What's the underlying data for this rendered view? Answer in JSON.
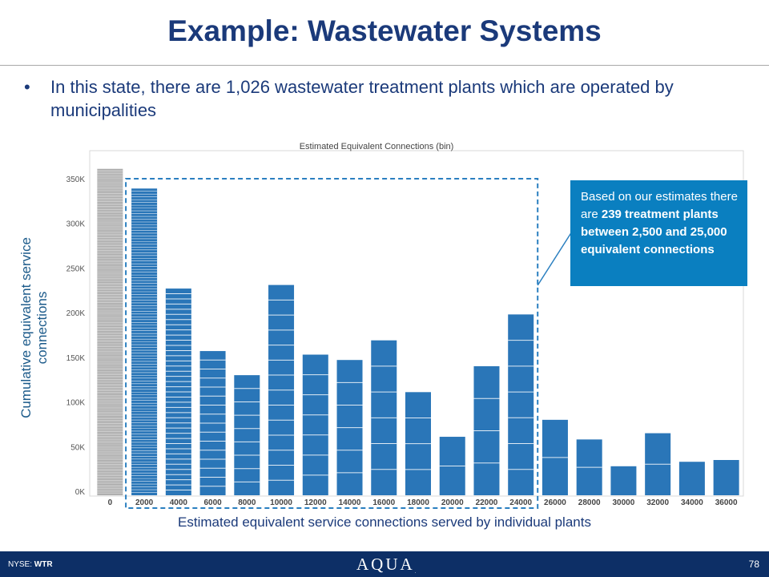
{
  "slide": {
    "title": "Example: Wastewater Systems",
    "bullet": "In this state, there are 1,026 wastewater treatment plants which are operated by municipalities"
  },
  "callout": {
    "pre": "Based on our estimates there are ",
    "bold": "239 treatment plants between 2,500 and 25,000 equivalent connections"
  },
  "footer": {
    "exchange": "NYSE: ",
    "ticker": "WTR",
    "logo": "AQUA",
    "logo_mark": ".",
    "page": "78"
  },
  "chart_data": {
    "type": "bar",
    "title": "Estimated Equivalent Connections (bin)",
    "xlabel": "Estimated equivalent service connections served by individual plants",
    "ylabel": "Cumulative equivalent service connections",
    "categories": [
      "0",
      "2000",
      "4000",
      "6000",
      "8000",
      "10000",
      "12000",
      "14000",
      "16000",
      "18000",
      "20000",
      "22000",
      "24000",
      "26000",
      "28000",
      "30000",
      "32000",
      "34000",
      "36000"
    ],
    "values": [
      361000,
      339000,
      227000,
      157000,
      130000,
      231000,
      153000,
      147000,
      169000,
      111000,
      61000,
      140000,
      198000,
      80000,
      58000,
      28000,
      65000,
      33000,
      35000
    ],
    "segment_counts": [
      200,
      110,
      40,
      16,
      9,
      14,
      7,
      6,
      6,
      4,
      2,
      4,
      7,
      2,
      2,
      1,
      2,
      1,
      1
    ],
    "ylim": [
      0,
      370000
    ],
    "yticks": [
      0,
      50000,
      100000,
      150000,
      200000,
      250000,
      300000,
      350000
    ],
    "ytick_labels": [
      "0K",
      "50K",
      "100K",
      "150K",
      "200K",
      "250K",
      "300K",
      "350K"
    ],
    "highlight_range": [
      "2000",
      "24000"
    ],
    "colors": {
      "bar": "#2a76b8",
      "first_bar": "#a6a6a6",
      "stripe": "#ffffff",
      "highlight_box": "#2a7fc0",
      "callout": "#0a7fc0"
    },
    "grid": false
  }
}
